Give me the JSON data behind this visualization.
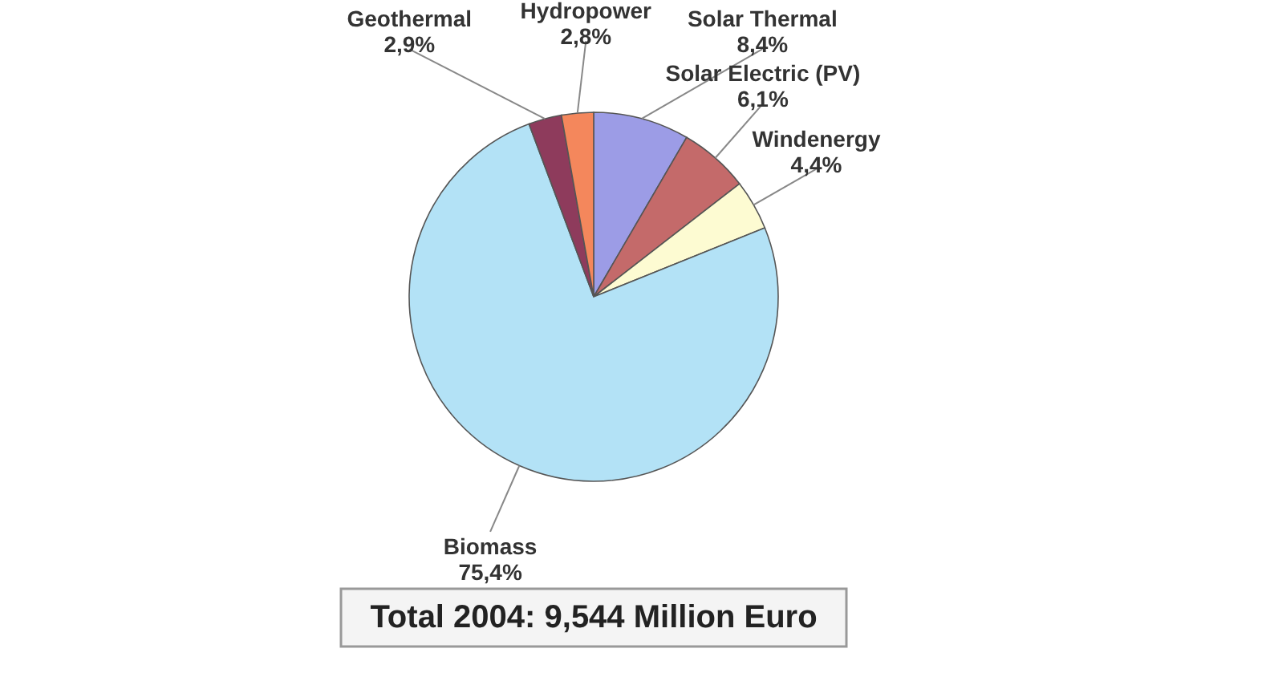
{
  "chart_data": {
    "type": "pie",
    "categories": [
      "Solar Thermal",
      "Solar Electric (PV)",
      "Windenergy",
      "Biomass",
      "Geothermal",
      "Hydropower"
    ],
    "values": [
      8.4,
      6.1,
      4.4,
      75.4,
      2.9,
      2.8
    ],
    "colors": [
      "#9c9ce6",
      "#c46a6a",
      "#fdfbd2",
      "#b3e2f6",
      "#8e3b5c",
      "#f4875c"
    ],
    "value_labels": [
      "8,4%",
      "6,1%",
      "4,4%",
      "75,4%",
      "2,9%",
      "2,8%"
    ],
    "annotations": [
      "Total 2004: 9,544 Million Euro"
    ]
  }
}
